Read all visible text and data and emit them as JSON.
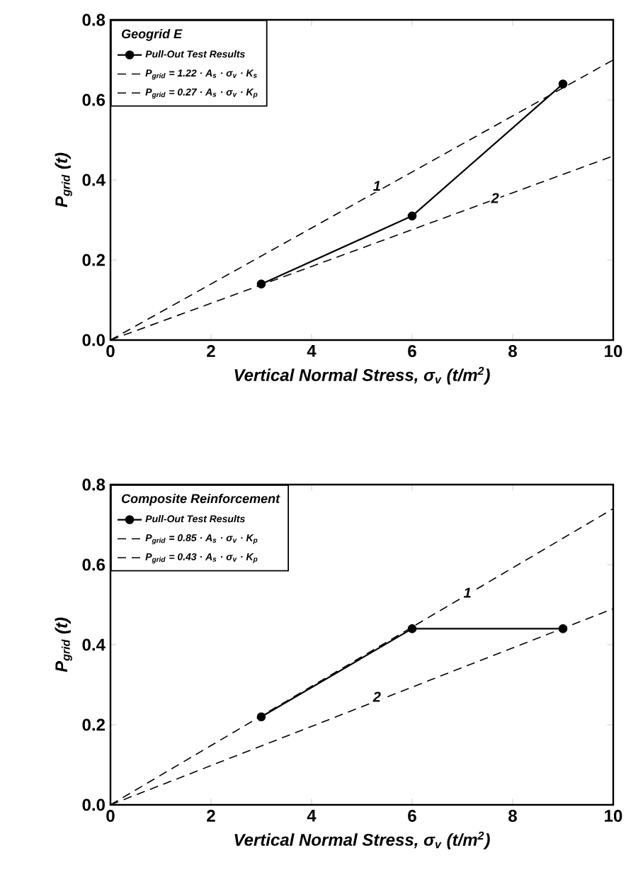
{
  "chart_data": [
    {
      "type": "line",
      "legend_title": "Geogrid E",
      "xlabel": "Vertical Normal Stress, σ$_{v}$ (t/m$^{2}$)",
      "ylabel": "P$_{grid}$ (t)",
      "xlim": [
        0,
        10
      ],
      "ylim": [
        0,
        0.8
      ],
      "xticks": [
        0,
        2,
        4,
        6,
        8,
        10
      ],
      "yticks": [
        {
          "value": 0,
          "label": "0.0"
        },
        0.2,
        0.4,
        0.6,
        0.8
      ],
      "legend": "top left",
      "series": [
        {
          "name": "Pull-Out Test Results",
          "color": "#000000",
          "marker": "circle",
          "line_style": "solid",
          "x": [
            3,
            6,
            9
          ],
          "values": [
            0.14,
            0.31,
            0.64
          ]
        },
        {
          "name": "P$_{grid}$ = 1.22 · A$_{s}$ · σ$_{v}$ · K$_{s}$",
          "color": "#000000",
          "marker": "none",
          "line_style": "dashed",
          "x": [
            0,
            10
          ],
          "values": [
            0,
            0.7
          ]
        },
        {
          "name": "P$_{grid}$ = 0.27 · A$_{s}$ · σ$_{v}$ · K$_{p}$",
          "color": "#000000",
          "marker": "none",
          "line_style": "dashed",
          "x": [
            0,
            10
          ],
          "values": [
            0,
            0.46
          ]
        }
      ],
      "annotations": [
        {
          "text": "1",
          "x": 5.3,
          "y": 0.385
        },
        {
          "text": "2",
          "x": 7.65,
          "y": 0.355
        }
      ]
    },
    {
      "type": "line",
      "legend_title": "Composite Reinforcement",
      "xlabel": "Vertical Normal Stress, σ$_{v}$ (t/m$^{2}$)",
      "ylabel": "P$_{grid}$ (t)",
      "xlim": [
        0,
        10
      ],
      "ylim": [
        0,
        0.8
      ],
      "xticks": [
        0,
        2,
        4,
        6,
        8,
        10
      ],
      "yticks": [
        {
          "value": 0,
          "label": "0.0"
        },
        0.2,
        0.4,
        0.6,
        0.8
      ],
      "legend": "top left",
      "series": [
        {
          "name": "Pull-Out Test Results",
          "color": "#000000",
          "marker": "circle",
          "line_style": "solid",
          "x": [
            3,
            6,
            9
          ],
          "values": [
            0.22,
            0.44,
            0.44
          ]
        },
        {
          "name": "P$_{grid}$ = 0.85 · A$_{s}$ · σ$_{v}$ · K$_{p}$",
          "color": "#000000",
          "marker": "none",
          "line_style": "dashed",
          "x": [
            0,
            10
          ],
          "values": [
            0,
            0.74
          ]
        },
        {
          "name": "P$_{grid}$ = 0.43 · A$_{s}$ · σ$_{v}$ · K$_{p}$",
          "color": "#000000",
          "marker": "none",
          "line_style": "dashed",
          "x": [
            0,
            10
          ],
          "values": [
            0,
            0.49
          ]
        }
      ],
      "annotations": [
        {
          "text": "1",
          "x": 7.1,
          "y": 0.53
        },
        {
          "text": "2",
          "x": 5.3,
          "y": 0.27
        }
      ]
    }
  ]
}
